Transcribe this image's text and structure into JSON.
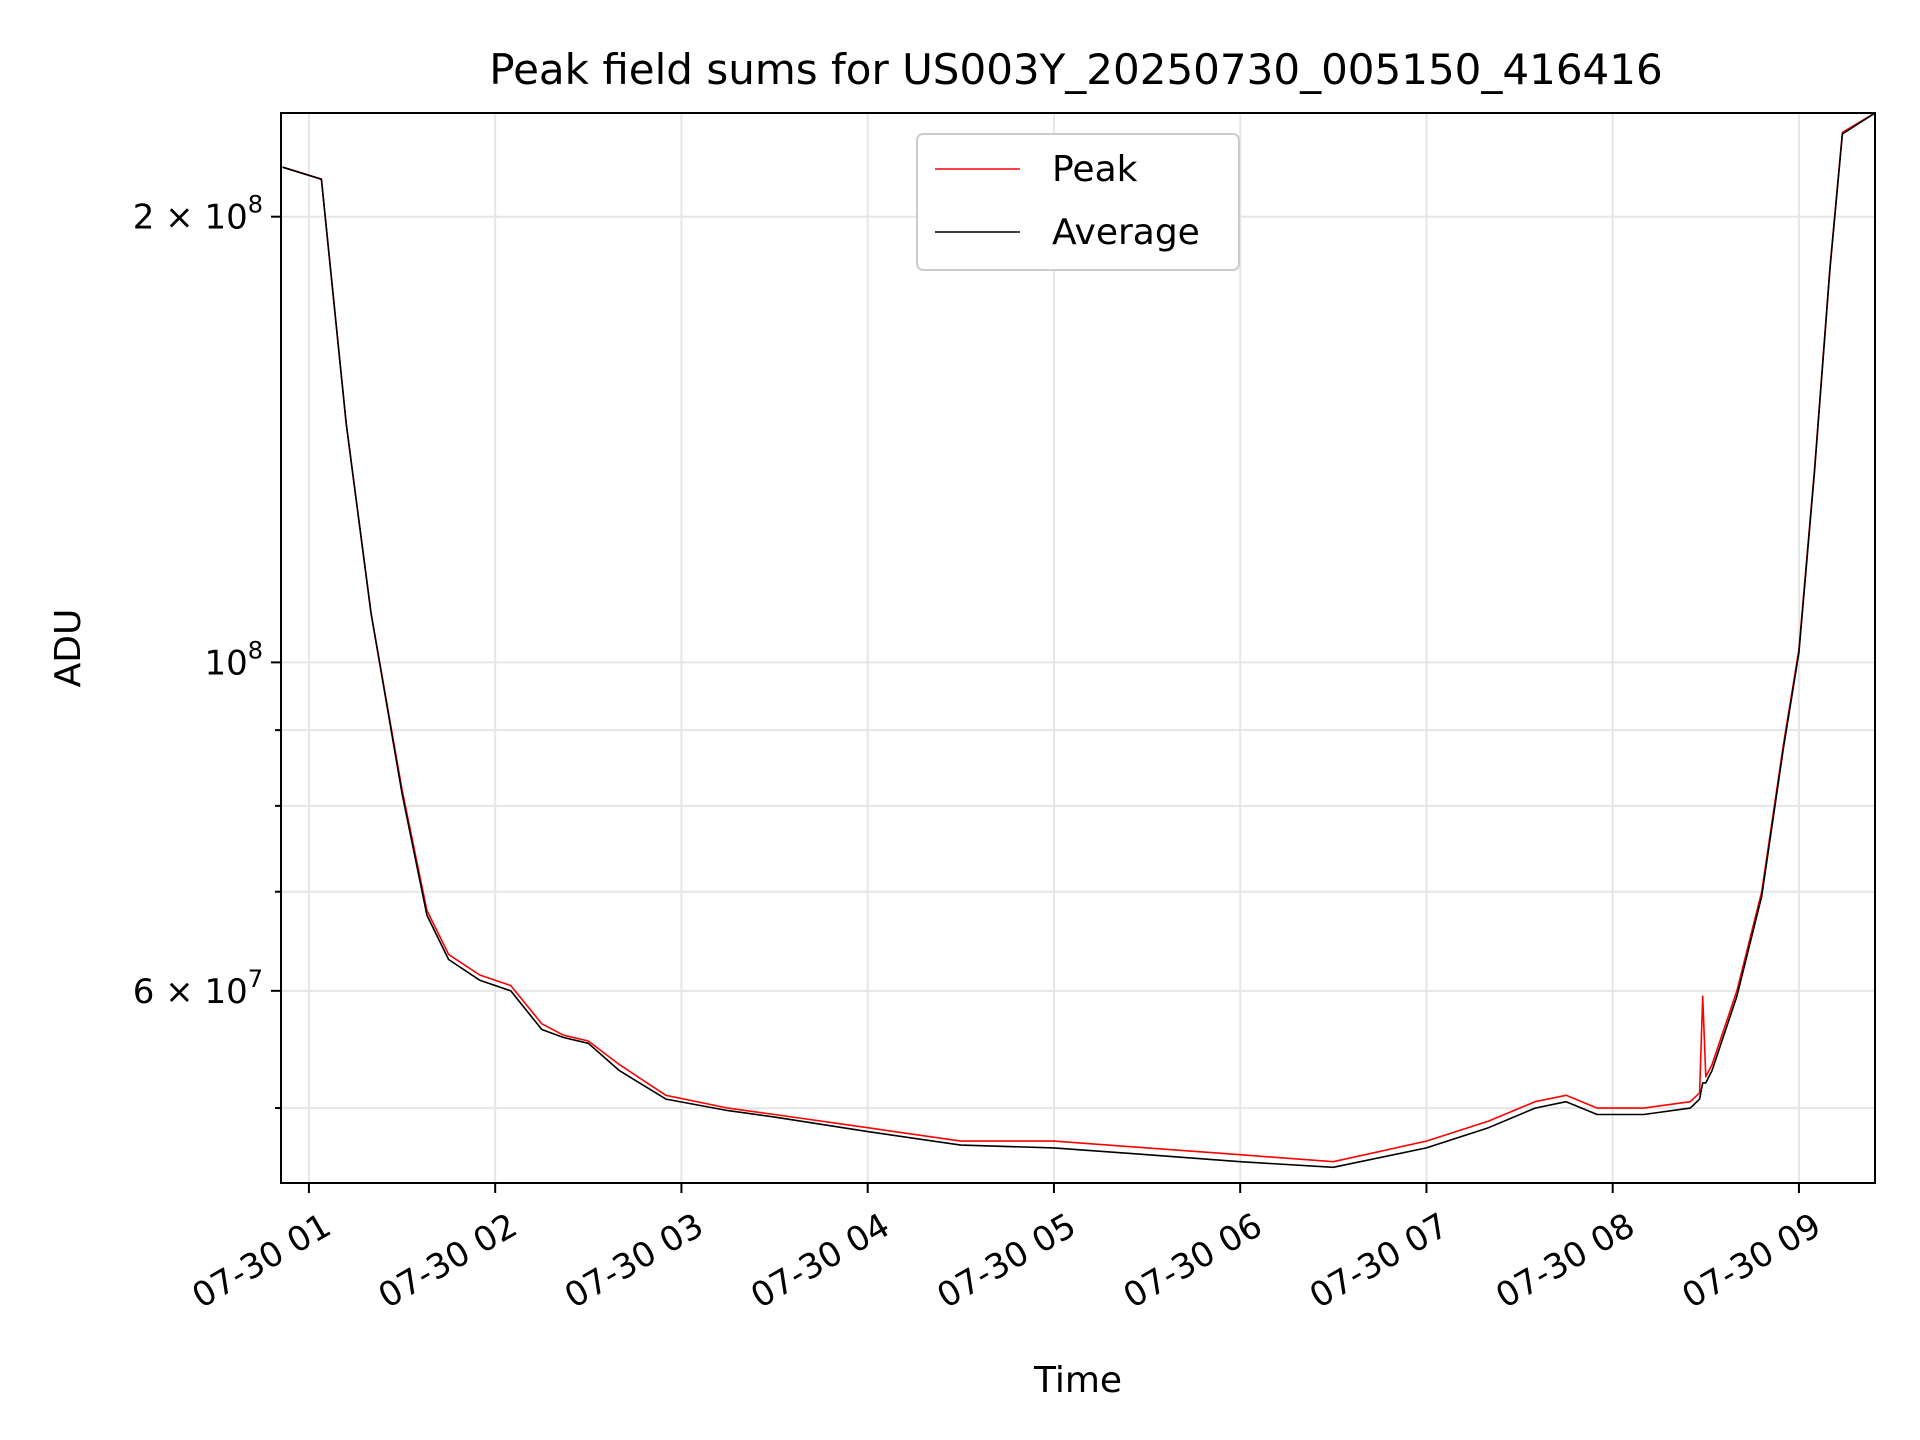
{
  "chart_data": {
    "type": "line",
    "title": "Peak field sums for US003Y_20250730_005150_416416",
    "xlabel": "Time",
    "ylabel": "ADU",
    "yscale": "log",
    "xlim": [
      "2025-07-30T00:51:00",
      "2025-07-30T09:24:30"
    ],
    "ylim": [
      44500000,
      235000000
    ],
    "grid": true,
    "legend_position": "upper center",
    "x_ticks": [
      {
        "t": "2025-07-30T01:00:00",
        "label": "07-30 01"
      },
      {
        "t": "2025-07-30T02:00:00",
        "label": "07-30 02"
      },
      {
        "t": "2025-07-30T03:00:00",
        "label": "07-30 03"
      },
      {
        "t": "2025-07-30T04:00:00",
        "label": "07-30 04"
      },
      {
        "t": "2025-07-30T05:00:00",
        "label": "07-30 05"
      },
      {
        "t": "2025-07-30T06:00:00",
        "label": "07-30 06"
      },
      {
        "t": "2025-07-30T07:00:00",
        "label": "07-30 07"
      },
      {
        "t": "2025-07-30T08:00:00",
        "label": "07-30 08"
      },
      {
        "t": "2025-07-30T09:00:00",
        "label": "07-30 09"
      }
    ],
    "y_ticks_major": [
      {
        "value": 200000000,
        "base": "2 × 10",
        "exp": "8"
      },
      {
        "value": 100000000,
        "base": "10",
        "exp": "8"
      },
      {
        "value": 60000000,
        "base": "6 × 10",
        "exp": "7"
      }
    ],
    "y_ticks_minor": [
      50000000,
      70000000,
      80000000,
      90000000
    ],
    "series": [
      {
        "name": "Peak",
        "color": "#ff0000",
        "x": [
          "2025-07-30T00:51:30",
          "2025-07-30T01:04:00",
          "2025-07-30T01:12:00",
          "2025-07-30T01:20:00",
          "2025-07-30T01:30:00",
          "2025-07-30T01:38:00",
          "2025-07-30T01:45:00",
          "2025-07-30T01:55:00",
          "2025-07-30T02:05:00",
          "2025-07-30T02:15:00",
          "2025-07-30T02:22:00",
          "2025-07-30T02:30:00",
          "2025-07-30T02:40:00",
          "2025-07-30T02:55:00",
          "2025-07-30T03:15:00",
          "2025-07-30T03:30:00",
          "2025-07-30T04:00:00",
          "2025-07-30T04:30:00",
          "2025-07-30T05:00:00",
          "2025-07-30T05:30:00",
          "2025-07-30T06:00:00",
          "2025-07-30T06:30:00",
          "2025-07-30T07:00:00",
          "2025-07-30T07:20:00",
          "2025-07-30T07:35:00",
          "2025-07-30T07:45:00",
          "2025-07-30T07:55:00",
          "2025-07-30T08:10:00",
          "2025-07-30T08:25:00",
          "2025-07-30T08:28:00",
          "2025-07-30T08:29:00",
          "2025-07-30T08:30:00",
          "2025-07-30T08:32:00",
          "2025-07-30T08:40:00",
          "2025-07-30T08:48:00",
          "2025-07-30T08:55:00",
          "2025-07-30T09:00:00",
          "2025-07-30T09:05:00",
          "2025-07-30T09:10:00",
          "2025-07-30T09:14:00",
          "2025-07-30T09:24:30"
        ],
        "y": [
          216000000,
          212000000,
          145000000,
          108000000,
          82000000,
          68000000,
          63500000,
          61500000,
          60500000,
          57000000,
          56000000,
          55500000,
          53500000,
          51000000,
          50000000,
          49500000,
          48500000,
          47500000,
          47500000,
          47000000,
          46500000,
          46000000,
          47500000,
          49000000,
          50500000,
          51000000,
          50000000,
          50000000,
          50500000,
          51200000,
          59500000,
          52500000,
          53500000,
          60000000,
          70000000,
          88000000,
          102000000,
          135000000,
          185000000,
          228000000,
          235000000
        ]
      },
      {
        "name": "Average",
        "color": "#000000",
        "x": [
          "2025-07-30T00:51:30",
          "2025-07-30T01:04:00",
          "2025-07-30T01:12:00",
          "2025-07-30T01:20:00",
          "2025-07-30T01:30:00",
          "2025-07-30T01:38:00",
          "2025-07-30T01:45:00",
          "2025-07-30T01:55:00",
          "2025-07-30T02:05:00",
          "2025-07-30T02:15:00",
          "2025-07-30T02:22:00",
          "2025-07-30T02:30:00",
          "2025-07-30T02:40:00",
          "2025-07-30T02:55:00",
          "2025-07-30T03:15:00",
          "2025-07-30T03:30:00",
          "2025-07-30T04:00:00",
          "2025-07-30T04:30:00",
          "2025-07-30T05:00:00",
          "2025-07-30T05:30:00",
          "2025-07-30T06:00:00",
          "2025-07-30T06:30:00",
          "2025-07-30T07:00:00",
          "2025-07-30T07:20:00",
          "2025-07-30T07:35:00",
          "2025-07-30T07:45:00",
          "2025-07-30T07:55:00",
          "2025-07-30T08:10:00",
          "2025-07-30T08:25:00",
          "2025-07-30T08:28:00",
          "2025-07-30T08:29:00",
          "2025-07-30T08:30:00",
          "2025-07-30T08:32:00",
          "2025-07-30T08:40:00",
          "2025-07-30T08:48:00",
          "2025-07-30T08:55:00",
          "2025-07-30T09:00:00",
          "2025-07-30T09:05:00",
          "2025-07-30T09:10:00",
          "2025-07-30T09:14:00",
          "2025-07-30T09:24:30"
        ],
        "y": [
          216000000,
          212000000,
          145000000,
          108000000,
          81500000,
          67500000,
          63000000,
          61000000,
          60000000,
          56500000,
          55800000,
          55300000,
          53000000,
          50700000,
          49800000,
          49300000,
          48200000,
          47200000,
          47000000,
          46500000,
          46000000,
          45600000,
          47000000,
          48500000,
          50000000,
          50500000,
          49500000,
          49500000,
          50000000,
          50700000,
          52000000,
          52000000,
          53000000,
          59500000,
          69500000,
          87500000,
          101500000,
          134500000,
          184500000,
          227500000,
          235000000
        ]
      }
    ]
  }
}
